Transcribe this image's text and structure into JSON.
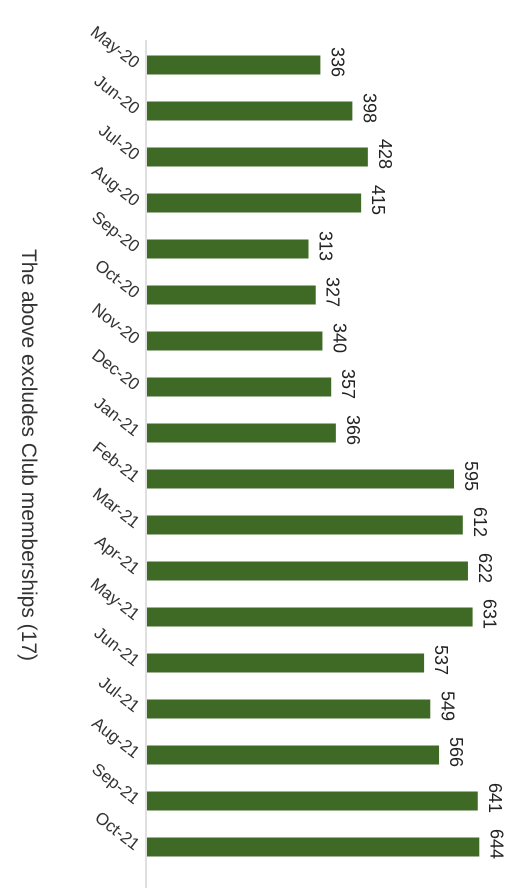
{
  "chart_data": {
    "type": "bar",
    "orientation": "horizontal",
    "categories": [
      "May-20",
      "Jun-20",
      "Jul-20",
      "Aug-20",
      "Sep-20",
      "Oct-20",
      "Nov-20",
      "Dec-20",
      "Jan-21",
      "Feb-21",
      "Mar-21",
      "Apr-21",
      "May-21",
      "Jun-21",
      "Jul-21",
      "Aug-21",
      "Sep-21",
      "Oct-21"
    ],
    "values": [
      336,
      398,
      428,
      415,
      313,
      327,
      340,
      357,
      366,
      595,
      612,
      622,
      631,
      537,
      549,
      566,
      641,
      644
    ],
    "title": "",
    "xlabel": "",
    "ylabel": "",
    "xlim": [
      0,
      700
    ],
    "data_labels": true,
    "grid": false,
    "legend": "none",
    "bar_color": "#3f6a26"
  },
  "note": "The above excludes Club memberships (17)"
}
